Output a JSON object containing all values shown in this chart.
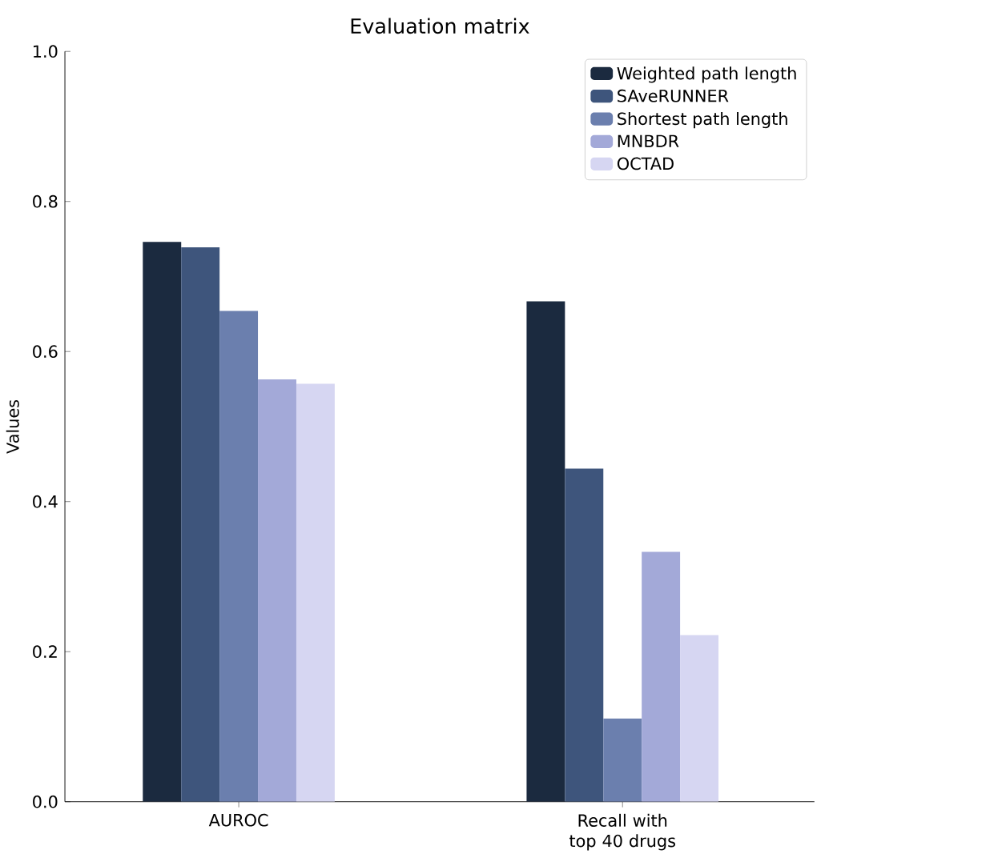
{
  "chart_data": {
    "type": "bar",
    "title": "Evaluation matrix",
    "ylabel": "Values",
    "categories": [
      "AUROC",
      "Recall with top 40 drugs"
    ],
    "series": [
      {
        "name": "Weighted path length",
        "color": "#1b2a3f",
        "values": [
          0.746,
          0.667
        ]
      },
      {
        "name": "SAveRUNNER",
        "color": "#3e557c",
        "values": [
          0.739,
          0.444
        ]
      },
      {
        "name": "Shortest path length",
        "color": "#6b7fae",
        "values": [
          0.654,
          0.111
        ]
      },
      {
        "name": "MNBDR",
        "color": "#a3a9d8",
        "values": [
          0.563,
          0.333
        ]
      },
      {
        "name": "OCTAD",
        "color": "#d6d6f2",
        "values": [
          0.557,
          0.222
        ]
      }
    ],
    "ylim": [
      0.0,
      1.0
    ],
    "yticks": [
      {
        "value": 0.0,
        "label": "0.0"
      },
      {
        "value": 0.2,
        "label": "0.2"
      },
      {
        "value": 0.4,
        "label": "0.4"
      },
      {
        "value": 0.6,
        "label": "0.6"
      },
      {
        "value": 0.8,
        "label": "0.8"
      },
      {
        "value": 1.0,
        "label": "1.0"
      }
    ],
    "legend": "top right",
    "grid": false
  }
}
